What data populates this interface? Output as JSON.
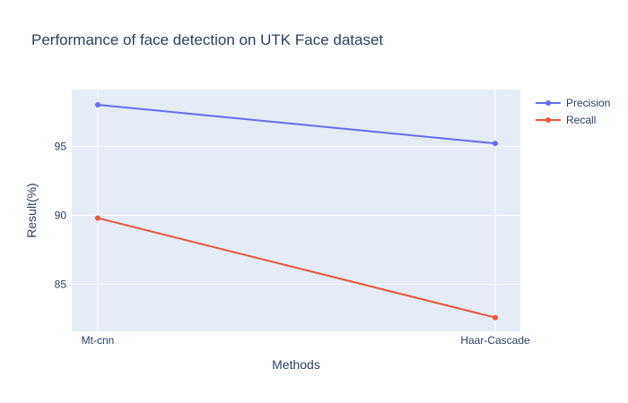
{
  "chart_data": {
    "type": "line",
    "title": "Performance of face detection on UTK Face dataset",
    "xlabel": "Methods",
    "ylabel": "Result(%)",
    "categories": [
      "Mt-cnn",
      "Haar-Cascade"
    ],
    "ylim": [
      81.6,
      99.1
    ],
    "yticks": [
      85,
      90,
      95
    ],
    "grid": true,
    "legend_position": "top-right",
    "series": [
      {
        "name": "Precision",
        "values": [
          98.0,
          95.2
        ],
        "color": "#636efa"
      },
      {
        "name": "Recall",
        "values": [
          89.8,
          82.6
        ],
        "color": "#ef553b"
      }
    ]
  }
}
